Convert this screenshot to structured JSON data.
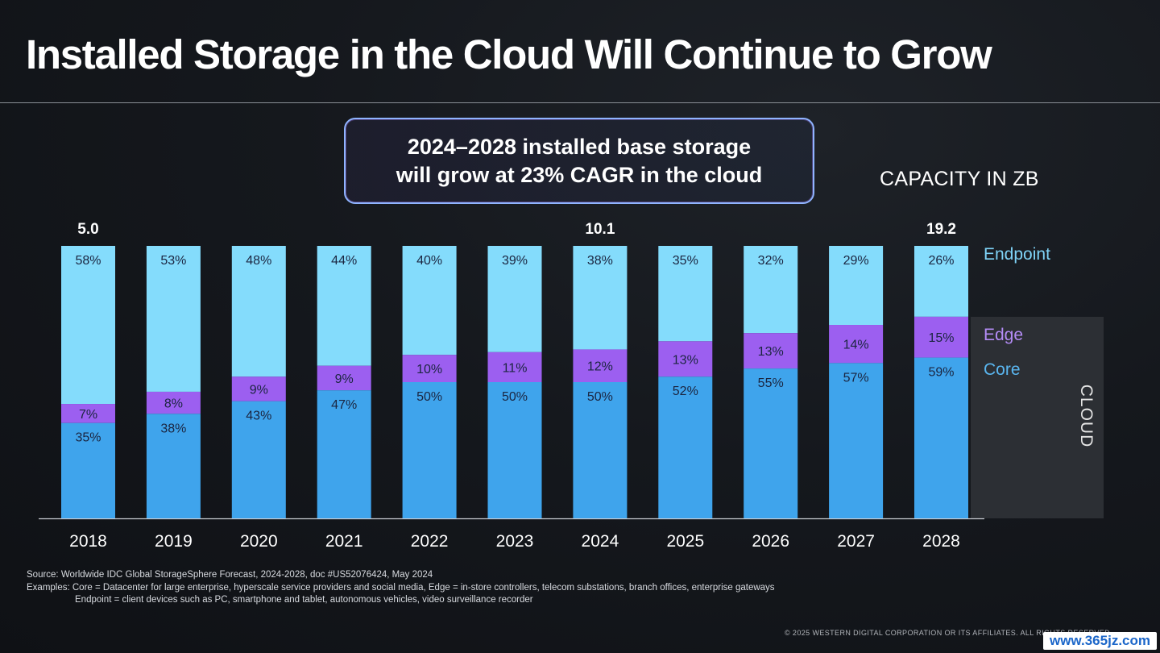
{
  "title": "Installed Storage in the Cloud Will Continue to Grow",
  "callout": {
    "line1": "2024–2028 installed base storage",
    "line2": "will grow at 23% CAGR in the cloud"
  },
  "capacity_label": "CAPACITY IN ZB",
  "cloud_label": "CLOUD",
  "legend": {
    "endpoint": "Endpoint",
    "edge": "Edge",
    "core": "Core"
  },
  "colors": {
    "endpoint": "#84dcfc",
    "edge": "#9c5ff0",
    "core": "#3fa4ec",
    "label_dark": "#1b2540"
  },
  "chart_data": {
    "type": "bar",
    "stacked": true,
    "normalized": true,
    "categories": [
      "2018",
      "2019",
      "2020",
      "2021",
      "2022",
      "2023",
      "2024",
      "2025",
      "2026",
      "2027",
      "2028"
    ],
    "series": [
      {
        "name": "Core",
        "values": [
          35,
          38,
          43,
          47,
          50,
          50,
          50,
          52,
          55,
          57,
          59
        ]
      },
      {
        "name": "Edge",
        "values": [
          7,
          8,
          9,
          9,
          10,
          11,
          12,
          13,
          13,
          14,
          15
        ]
      },
      {
        "name": "Endpoint",
        "values": [
          58,
          53,
          48,
          44,
          40,
          39,
          38,
          35,
          32,
          29,
          26
        ]
      }
    ],
    "totals": [
      {
        "category": "2018",
        "value": "5.0"
      },
      {
        "category": "2024",
        "value": "10.1"
      },
      {
        "category": "2028",
        "value": "19.2"
      }
    ],
    "ylim": [
      0,
      100
    ],
    "grid": false
  },
  "footer": {
    "source": "Source: Worldwide IDC Global StorageSphere Forecast, 2024-2028, doc #US52076424, May 2024",
    "examples1": "Examples: Core = Datacenter for large enterprise, hyperscale service providers and social media, Edge = in-store controllers, telecom substations, branch offices, enterprise gateways",
    "examples2": "Endpoint = client devices such as PC, smartphone and tablet, autonomous vehicles, video surveillance recorder",
    "copyright": "© 2025 WESTERN DIGITAL CORPORATION OR ITS AFFILIATES. ALL RIGHTS RESERVED.",
    "watermark": "www.365jz.com"
  }
}
